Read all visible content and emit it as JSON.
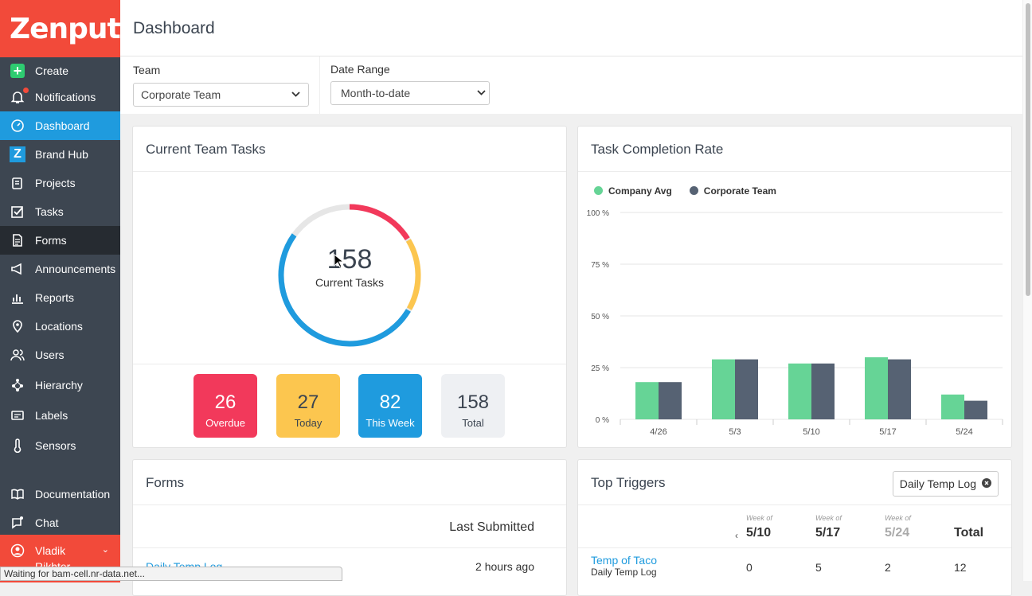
{
  "sidebar": {
    "logo": "Zenput.",
    "items": [
      {
        "label": "Create",
        "icon": "plus-icon"
      },
      {
        "label": "Notifications",
        "icon": "bell-icon"
      },
      {
        "label": "Dashboard",
        "icon": "gauge-icon"
      },
      {
        "label": "Brand Hub",
        "icon": "z-logo-icon"
      },
      {
        "label": "Projects",
        "icon": "clipboard-icon"
      },
      {
        "label": "Tasks",
        "icon": "checkbox-icon"
      },
      {
        "label": "Forms",
        "icon": "document-icon"
      },
      {
        "label": "Announcements",
        "icon": "megaphone-icon"
      },
      {
        "label": "Reports",
        "icon": "chart-icon"
      },
      {
        "label": "Locations",
        "icon": "pin-icon"
      },
      {
        "label": "Users",
        "icon": "users-icon"
      },
      {
        "label": "Hierarchy",
        "icon": "hierarchy-icon"
      },
      {
        "label": "Labels",
        "icon": "labels-icon"
      },
      {
        "label": "Sensors",
        "icon": "thermometer-icon"
      }
    ],
    "bottom_items": [
      {
        "label": "Documentation",
        "icon": "book-icon"
      },
      {
        "label": "Chat",
        "icon": "chat-icon"
      }
    ],
    "user": {
      "first": "Vladik",
      "last": "Rikhter"
    }
  },
  "header": {
    "title": "Dashboard"
  },
  "filters": {
    "team_label": "Team",
    "team_value": "Corporate Team",
    "date_label": "Date Range",
    "date_value": "Month-to-date"
  },
  "team_tasks": {
    "title": "Current Team Tasks",
    "total": "158",
    "center_label": "Current Tasks",
    "tiles": [
      {
        "value": "26",
        "label": "Overdue",
        "color": "#f2395b"
      },
      {
        "value": "27",
        "label": "Today",
        "color": "#fcc64f"
      },
      {
        "value": "82",
        "label": "This Week",
        "color": "#1f9bde"
      },
      {
        "value": "158",
        "label": "Total",
        "color": "#eef0f3"
      }
    ]
  },
  "completion": {
    "title": "Task Completion Rate",
    "chart_data": {
      "type": "bar",
      "categories": [
        "4/26",
        "5/3",
        "5/10",
        "5/17",
        "5/24"
      ],
      "series": [
        {
          "name": "Company Avg",
          "color": "#66d496",
          "values": [
            18,
            29,
            27,
            30,
            12
          ]
        },
        {
          "name": "Corporate Team",
          "color": "#566273",
          "values": [
            18,
            29,
            27,
            29,
            9
          ]
        }
      ],
      "y_ticks": [
        "100 %",
        "75 %",
        "50 %",
        "25 %",
        "0 %"
      ],
      "ylim": [
        0,
        100
      ],
      "legend": "top-left",
      "grid": true
    }
  },
  "forms": {
    "title": "Forms",
    "col_header": "Last Submitted",
    "rows": [
      {
        "name": "Daily Temp Log",
        "last": "2 hours ago"
      }
    ]
  },
  "triggers": {
    "title": "Top Triggers",
    "filter_chip": "Daily Temp Log",
    "week_of": "Week of",
    "weeks": [
      "5/10",
      "5/17",
      "5/24"
    ],
    "total_label": "Total",
    "prev_arrow": "‹",
    "rows": [
      {
        "name": "Temp of Taco",
        "sub": "Daily Temp Log",
        "values": [
          "0",
          "5",
          "2"
        ],
        "total": "12"
      }
    ]
  },
  "status": "Waiting for bam-cell.nr-data.net..."
}
